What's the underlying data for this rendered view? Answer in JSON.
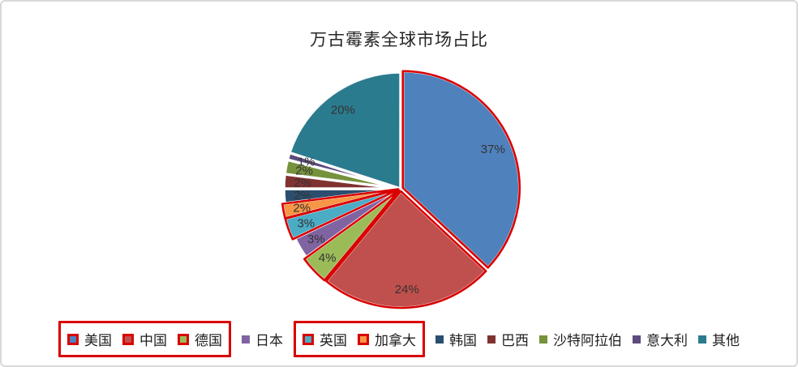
{
  "title": "万古霉素全球市场占比",
  "chart_data": {
    "type": "pie",
    "title": "万古霉素全球市场占比",
    "unit": "%",
    "categories": [
      "美国",
      "中国",
      "德国",
      "日本",
      "英国",
      "加拿大",
      "韩国",
      "巴西",
      "沙特阿拉伯",
      "意大利",
      "其他"
    ],
    "values": [
      37,
      24,
      4,
      3,
      3,
      2,
      2,
      2,
      2,
      1,
      20
    ],
    "labels": [
      "37%",
      "24%",
      "4%",
      "3%",
      "3%",
      "2%",
      "2%",
      "2%",
      "2%",
      "1%",
      "20%"
    ],
    "colors": [
      "#4F81BD",
      "#C0504D",
      "#9BBB59",
      "#8064A2",
      "#4BACC6",
      "#F79646",
      "#2B4E6F",
      "#803231",
      "#76923C",
      "#5D4B7E",
      "#2B7B8E"
    ],
    "start_angle_deg": 0,
    "direction": "clockwise",
    "legend_position": "bottom",
    "slice_border_color": "#ffffff"
  },
  "annotations": {
    "color": "#d90000",
    "highlighted_categories": [
      "美国",
      "中国",
      "德国",
      "英国",
      "加拿大"
    ],
    "legend_boxes": [
      [
        "美国",
        "中国",
        "德国"
      ],
      [
        "英国",
        "加拿大"
      ]
    ]
  }
}
